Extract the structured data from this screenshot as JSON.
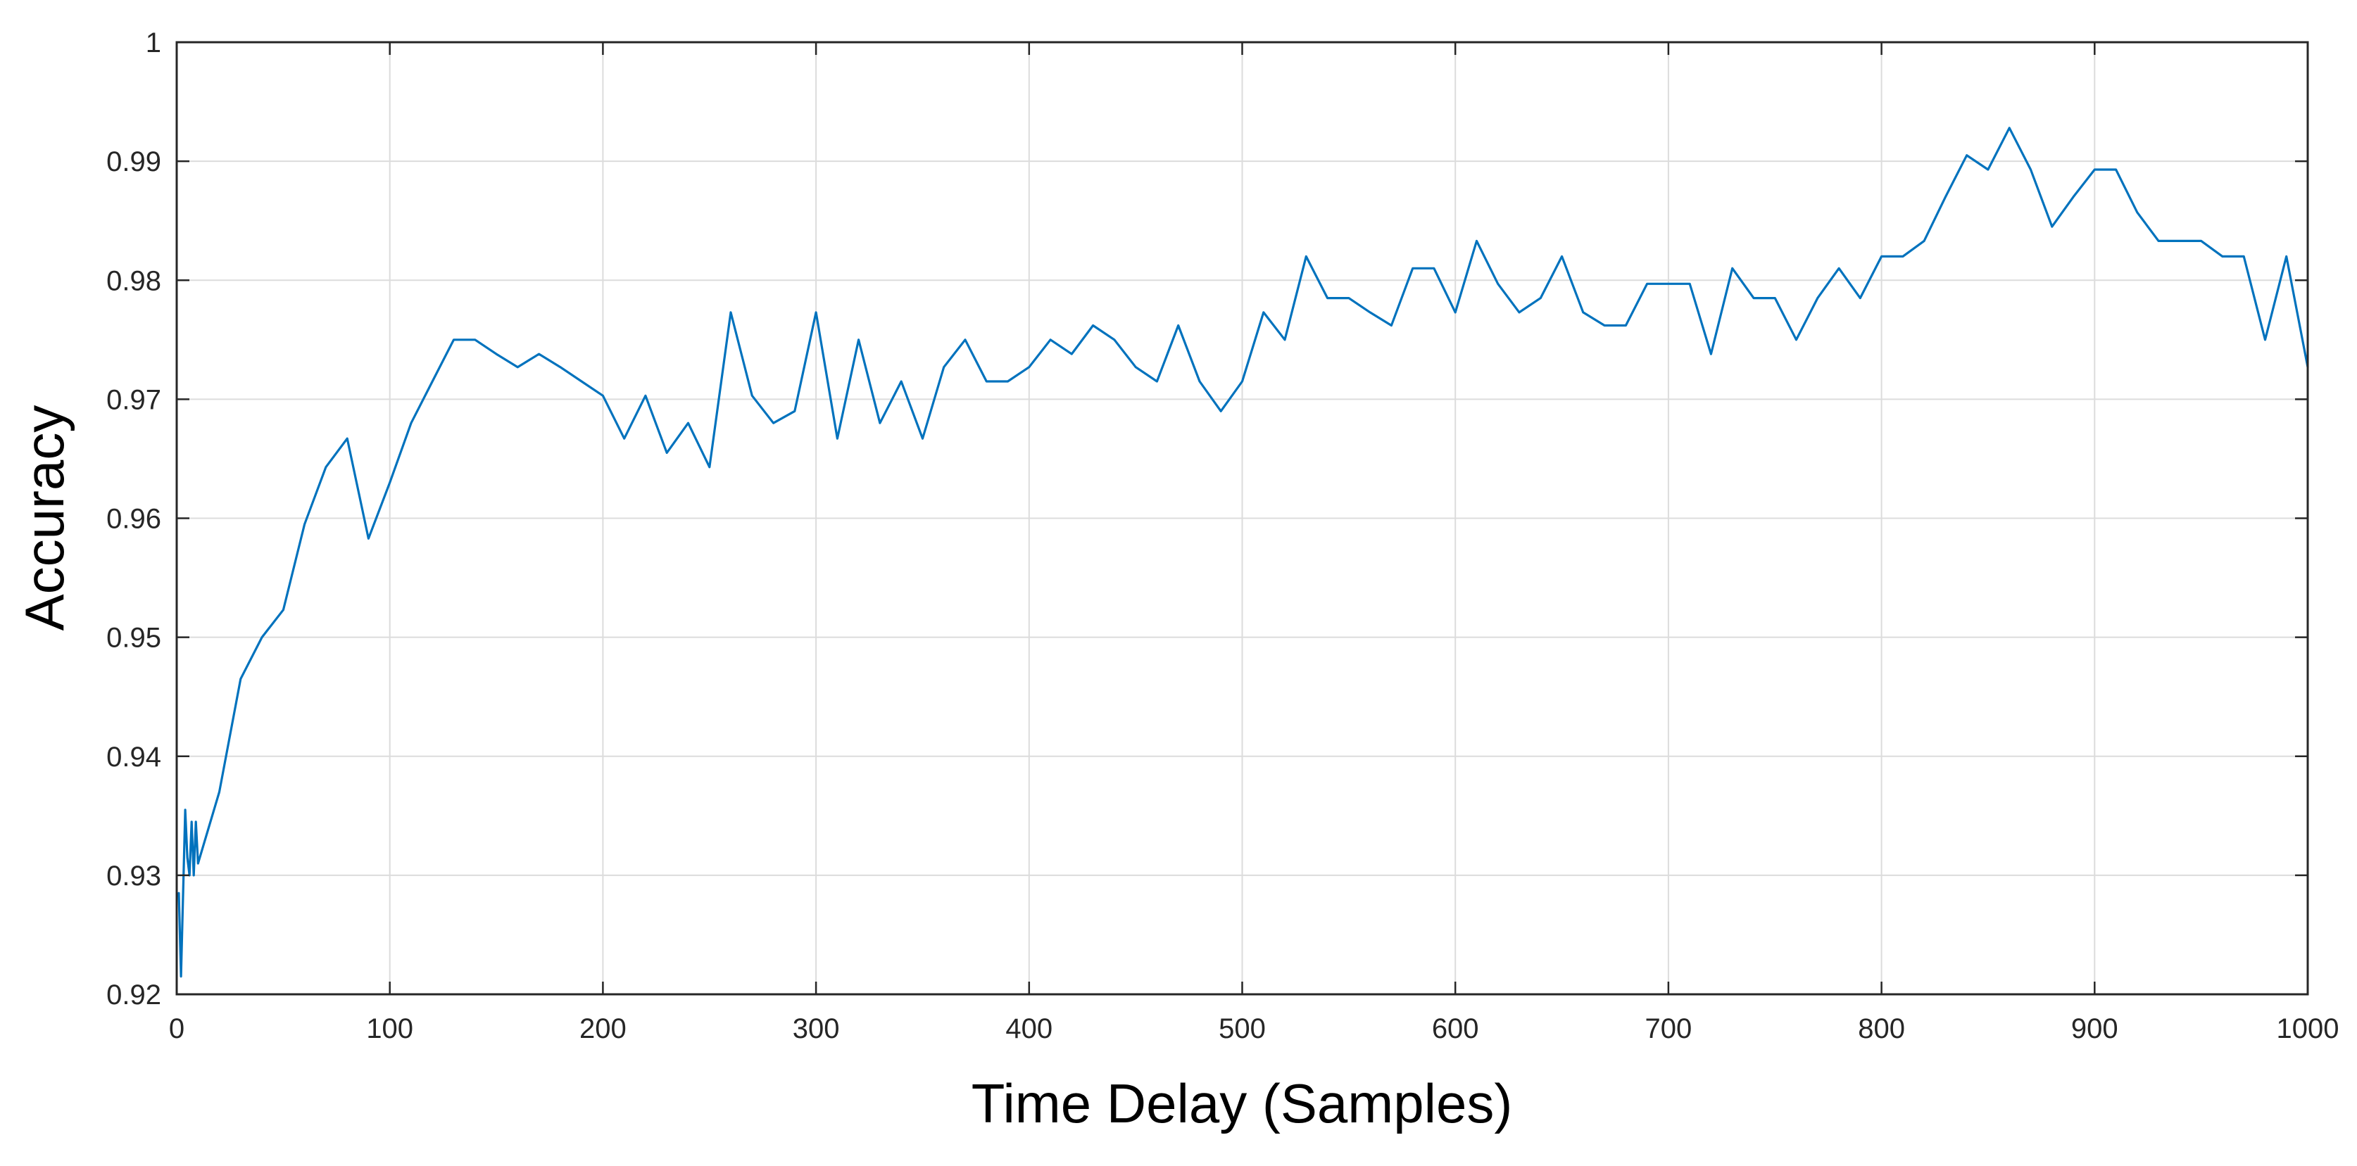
{
  "chart_data": {
    "type": "line",
    "title": "",
    "xlabel": "Time Delay (Samples)",
    "ylabel": "Accuracy",
    "xlim": [
      0,
      1000
    ],
    "ylim": [
      0.92,
      1
    ],
    "xticks": [
      0,
      100,
      200,
      300,
      400,
      500,
      600,
      700,
      800,
      900,
      1000
    ],
    "yticks": [
      0.92,
      0.93,
      0.94,
      0.95,
      0.96,
      0.97,
      0.98,
      0.99,
      1
    ],
    "xtick_labels": [
      "0",
      "100",
      "200",
      "300",
      "400",
      "500",
      "600",
      "700",
      "800",
      "900",
      "1000"
    ],
    "ytick_labels": [
      "0.92",
      "0.93",
      "0.94",
      "0.95",
      "0.96",
      "0.97",
      "0.98",
      "0.99",
      "1"
    ],
    "grid": true,
    "line_color": "#0072BD",
    "series": [
      {
        "x": [
          1,
          2,
          3,
          4,
          5,
          6,
          7,
          8,
          9,
          10,
          20,
          30,
          40,
          50,
          60,
          70,
          80,
          90,
          100,
          110,
          120,
          130,
          140,
          150,
          160,
          170,
          180,
          190,
          200,
          210,
          220,
          230,
          240,
          250,
          260,
          270,
          280,
          290,
          300,
          310,
          320,
          330,
          340,
          350,
          360,
          370,
          380,
          390,
          400,
          410,
          420,
          430,
          440,
          450,
          460,
          470,
          480,
          490,
          500,
          510,
          520,
          530,
          540,
          550,
          560,
          570,
          580,
          590,
          600,
          610,
          620,
          630,
          640,
          650,
          660,
          670,
          680,
          690,
          700,
          710,
          720,
          730,
          740,
          750,
          760,
          770,
          780,
          790,
          800,
          810,
          820,
          830,
          840,
          850,
          860,
          870,
          880,
          890,
          900,
          910,
          920,
          930,
          940,
          950,
          960,
          970,
          980,
          990,
          1000
        ],
        "values": [
          0.9285,
          0.9215,
          0.9285,
          0.9355,
          0.9315,
          0.93,
          0.9345,
          0.93,
          0.9345,
          0.931,
          0.937,
          0.9465,
          0.95,
          0.9523,
          0.9595,
          0.9643,
          0.9667,
          0.9583,
          0.963,
          0.968,
          0.9715,
          0.975,
          0.975,
          0.9738,
          0.9727,
          0.9738,
          0.9727,
          0.9715,
          0.9703,
          0.9667,
          0.9703,
          0.9655,
          0.968,
          0.9643,
          0.9773,
          0.9703,
          0.968,
          0.969,
          0.9773,
          0.9667,
          0.975,
          0.968,
          0.9715,
          0.9667,
          0.9727,
          0.975,
          0.9715,
          0.9715,
          0.9727,
          0.975,
          0.9738,
          0.9762,
          0.975,
          0.9727,
          0.9715,
          0.9762,
          0.9715,
          0.969,
          0.9715,
          0.9773,
          0.975,
          0.982,
          0.9785,
          0.9785,
          0.9773,
          0.9762,
          0.981,
          0.981,
          0.9773,
          0.9833,
          0.9797,
          0.9773,
          0.9785,
          0.982,
          0.9773,
          0.9762,
          0.9762,
          0.9797,
          0.9797,
          0.9797,
          0.9738,
          0.981,
          0.9785,
          0.9785,
          0.975,
          0.9785,
          0.981,
          0.9785,
          0.982,
          0.982,
          0.9833,
          0.987,
          0.9905,
          0.9893,
          0.9928,
          0.9893,
          0.9845,
          0.987,
          0.9893,
          0.9893,
          0.9857,
          0.9833,
          0.9833,
          0.9833,
          0.982,
          0.982,
          0.975,
          0.982,
          0.9727
        ]
      }
    ]
  }
}
